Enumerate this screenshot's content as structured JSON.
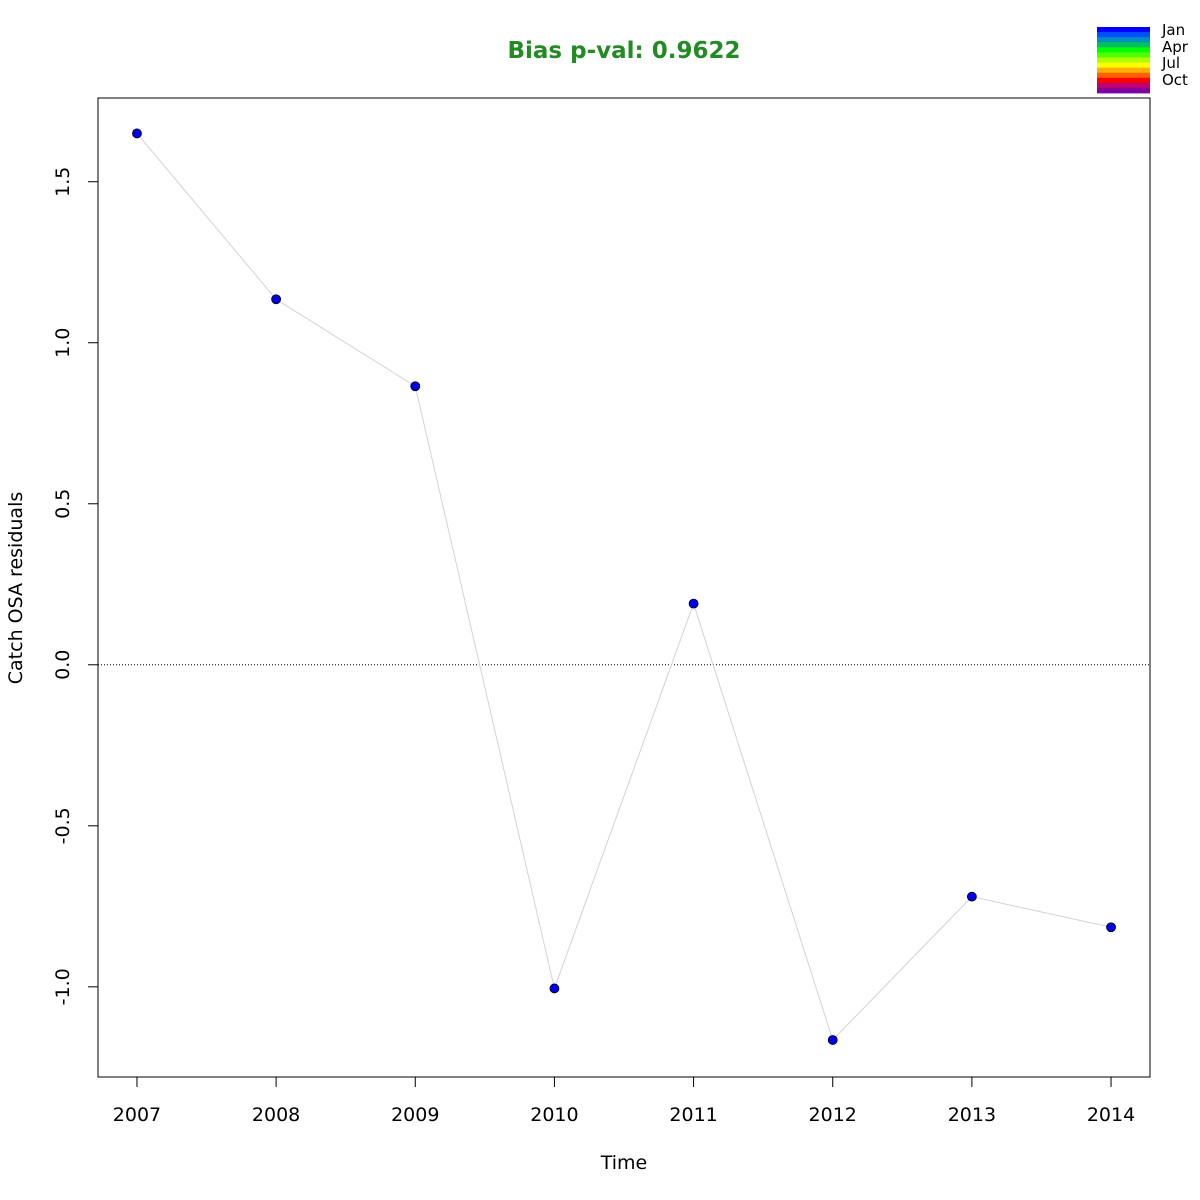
{
  "chart_data": {
    "type": "scatter",
    "title": "Bias p-val: 0.9622",
    "title_color": "#228b22",
    "xlabel": "Time",
    "ylabel": "Catch OSA residuals",
    "x_ticks": [
      "2007",
      "2008",
      "2009",
      "2010",
      "2011",
      "2012",
      "2013",
      "2014"
    ],
    "y_ticks": [
      "-1.0",
      "-0.5",
      "0.0",
      "0.5",
      "1.0",
      "1.5"
    ],
    "xlim": [
      2006.72,
      2014.28
    ],
    "ylim": [
      -1.28,
      1.76
    ],
    "grid": false,
    "reference_line": {
      "y": 0,
      "style": "dotted"
    },
    "series": [
      {
        "x": [
          2007,
          2008,
          2009,
          2010,
          2011,
          2012,
          2013,
          2014
        ],
        "y": [
          1.65,
          1.135,
          0.865,
          -1.005,
          0.19,
          -1.165,
          -0.72,
          -0.815
        ],
        "point_color": "#0000ee",
        "line_color": "#d3d3d3"
      }
    ],
    "legend": {
      "placement": "top-right",
      "labels": [
        "Jan",
        "Apr",
        "Jul",
        "Oct"
      ],
      "colors": [
        "#0000ff",
        "#0050ff",
        "#0090c0",
        "#00c060",
        "#00ff00",
        "#50ff00",
        "#b0ff00",
        "#ffff00",
        "#ffb000",
        "#ff6000",
        "#ff0000",
        "#c00070",
        "#8000a0"
      ]
    }
  }
}
